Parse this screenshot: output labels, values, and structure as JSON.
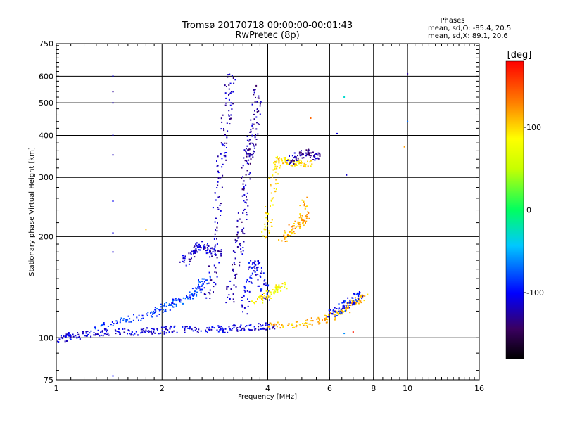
{
  "title_line1": "Tromsø 20170718 00:00:00-00:01:43",
  "title_line2": "RwPretec (8p)",
  "stats": {
    "heading": "Phases",
    "o_line": "mean, sd,O: -85.4, 20.5",
    "x_line": "mean, sd,X:  89.1, 20.6"
  },
  "colorbar": {
    "label": "[deg]",
    "ticks": [
      "100",
      "0",
      "-100"
    ],
    "tick_values": [
      100,
      0,
      -100
    ],
    "range": [
      -180,
      180
    ]
  },
  "chart_data": {
    "type": "scatter",
    "xlabel": "Frequency [MHz]",
    "ylabel": "Stationary phase Virtual Height [km]",
    "xscale": "log",
    "yscale": "log",
    "xlim": [
      1,
      16
    ],
    "ylim": [
      75,
      750
    ],
    "xticks": [
      "1",
      "2",
      "4",
      "6",
      "8",
      "10",
      "16"
    ],
    "yticks": [
      "75",
      "100",
      "200",
      "300",
      "400",
      "500",
      "600",
      "750"
    ],
    "grid": true,
    "color_scale": "phase [deg]",
    "traces": [
      {
        "phase": -110,
        "points": [
          [
            1.0,
            99
          ],
          [
            1.05,
            100
          ],
          [
            1.1,
            101
          ],
          [
            1.2,
            102
          ],
          [
            1.3,
            103
          ],
          [
            1.4,
            104
          ],
          [
            1.55,
            104
          ],
          [
            1.7,
            104
          ],
          [
            1.85,
            105
          ],
          [
            2.0,
            105
          ],
          [
            2.2,
            106
          ],
          [
            2.5,
            106
          ],
          [
            2.8,
            106
          ],
          [
            3.0,
            106
          ],
          [
            3.3,
            107
          ],
          [
            3.6,
            107
          ],
          [
            3.9,
            108
          ],
          [
            4.1,
            108
          ]
        ]
      },
      {
        "phase": -85,
        "points": [
          [
            1.3,
            107
          ],
          [
            1.5,
            111
          ],
          [
            1.7,
            115
          ],
          [
            1.9,
            118
          ],
          [
            2.0,
            122
          ],
          [
            2.1,
            126
          ],
          [
            2.2,
            128
          ],
          [
            2.4,
            133
          ],
          [
            2.5,
            138
          ],
          [
            2.6,
            145
          ],
          [
            2.7,
            150
          ]
        ]
      },
      {
        "phase": -115,
        "points": [
          [
            2.3,
            165
          ],
          [
            2.4,
            175
          ],
          [
            2.5,
            183
          ],
          [
            2.6,
            190
          ],
          [
            2.7,
            185
          ],
          [
            2.8,
            180
          ],
          [
            2.9,
            178
          ]
        ]
      },
      {
        "phase": -120,
        "points": [
          [
            2.7,
            130
          ],
          [
            2.8,
            155
          ],
          [
            2.85,
            200
          ],
          [
            2.9,
            260
          ],
          [
            2.95,
            330
          ],
          [
            3.0,
            380
          ],
          [
            3.05,
            450
          ],
          [
            3.1,
            530
          ],
          [
            3.15,
            620
          ]
        ]
      },
      {
        "phase": -125,
        "points": [
          [
            3.1,
            125
          ],
          [
            3.2,
            150
          ],
          [
            3.3,
            180
          ],
          [
            3.35,
            200
          ],
          [
            3.4,
            240
          ],
          [
            3.45,
            290
          ],
          [
            3.5,
            340
          ],
          [
            3.55,
            360
          ],
          [
            3.6,
            380
          ],
          [
            3.65,
            420
          ],
          [
            3.7,
            480
          ],
          [
            3.75,
            560
          ]
        ]
      },
      {
        "phase": -105,
        "points": [
          [
            3.4,
            120
          ],
          [
            3.5,
            140
          ],
          [
            3.6,
            160
          ],
          [
            3.7,
            170
          ],
          [
            3.8,
            155
          ],
          [
            3.9,
            140
          ],
          [
            4.0,
            130
          ]
        ]
      },
      {
        "phase": 85,
        "points": [
          [
            3.7,
            128
          ],
          [
            3.9,
            132
          ],
          [
            4.1,
            136
          ],
          [
            4.3,
            140
          ],
          [
            4.4,
            143
          ]
        ]
      },
      {
        "phase": 95,
        "points": [
          [
            3.9,
            200
          ],
          [
            4.0,
            220
          ],
          [
            4.1,
            270
          ],
          [
            4.2,
            320
          ],
          [
            4.3,
            340
          ],
          [
            4.5,
            335
          ],
          [
            4.7,
            330
          ],
          [
            5.0,
            330
          ],
          [
            5.3,
            330
          ]
        ]
      },
      {
        "phase": 115,
        "points": [
          [
            4.4,
            195
          ],
          [
            4.6,
            205
          ],
          [
            4.8,
            215
          ],
          [
            5.0,
            222
          ],
          [
            5.1,
            230
          ],
          [
            5.0,
            260
          ]
        ]
      },
      {
        "phase": 110,
        "points": [
          [
            4.0,
            110
          ],
          [
            4.5,
            109
          ],
          [
            5.0,
            110
          ],
          [
            5.5,
            112
          ],
          [
            6.0,
            114
          ],
          [
            6.3,
            118
          ],
          [
            6.6,
            121
          ],
          [
            6.9,
            125
          ],
          [
            7.1,
            128
          ],
          [
            7.3,
            130
          ],
          [
            7.5,
            132
          ]
        ]
      },
      {
        "phase": -95,
        "points": [
          [
            6.0,
            117
          ],
          [
            6.3,
            120
          ],
          [
            6.6,
            124
          ],
          [
            6.9,
            128
          ],
          [
            7.1,
            132
          ],
          [
            7.3,
            135
          ]
        ]
      },
      {
        "phase": -125,
        "points": [
          [
            4.6,
            330
          ],
          [
            4.8,
            345
          ],
          [
            5.0,
            352
          ],
          [
            5.2,
            356
          ],
          [
            5.4,
            350
          ],
          [
            5.6,
            345
          ]
        ]
      }
    ],
    "points": [
      {
        "x": 1.45,
        "y": 600,
        "phase": -110
      },
      {
        "x": 1.45,
        "y": 540,
        "phase": -130
      },
      {
        "x": 1.45,
        "y": 500,
        "phase": -120
      },
      {
        "x": 1.45,
        "y": 400,
        "phase": -115
      },
      {
        "x": 1.45,
        "y": 350,
        "phase": -120
      },
      {
        "x": 1.45,
        "y": 255,
        "phase": -105
      },
      {
        "x": 1.45,
        "y": 205,
        "phase": -110
      },
      {
        "x": 1.45,
        "y": 180,
        "phase": -115
      },
      {
        "x": 1.45,
        "y": 77,
        "phase": -100
      },
      {
        "x": 1.8,
        "y": 210,
        "phase": 110
      },
      {
        "x": 6.6,
        "y": 520,
        "phase": -30
      },
      {
        "x": 9.8,
        "y": 370,
        "phase": 120
      },
      {
        "x": 10.0,
        "y": 610,
        "phase": -130
      },
      {
        "x": 6.3,
        "y": 405,
        "phase": -110
      },
      {
        "x": 6.7,
        "y": 305,
        "phase": -115
      },
      {
        "x": 6.6,
        "y": 103,
        "phase": -60
      },
      {
        "x": 7.0,
        "y": 104,
        "phase": 170
      },
      {
        "x": 10.0,
        "y": 440,
        "phase": -70
      },
      {
        "x": 5.3,
        "y": 450,
        "phase": 140
      }
    ]
  }
}
